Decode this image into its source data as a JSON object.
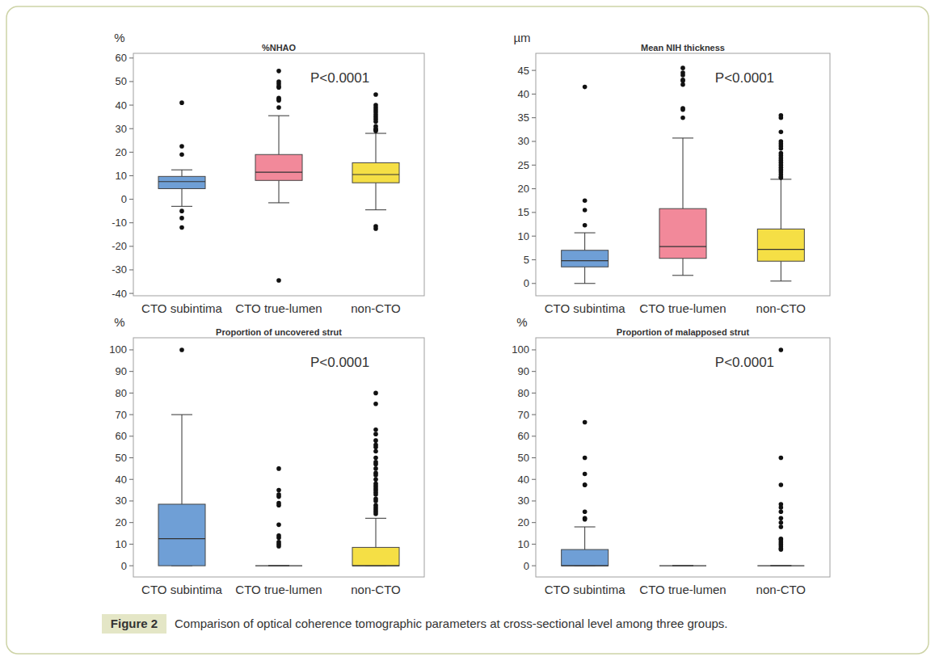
{
  "chart_data": [
    {
      "type": "box",
      "title": "%NHAO",
      "y_label": "%",
      "annotation": "P<0.0001",
      "categories": [
        "CTO subintima",
        "CTO true-lumen",
        "non-CTO"
      ],
      "colors": [
        "#6f9fd6",
        "#f2899a",
        "#f5df45"
      ],
      "ylim": [
        -41,
        62
      ],
      "yticks": [
        -40,
        -30,
        -20,
        -10,
        0,
        10,
        20,
        30,
        40,
        50,
        60
      ],
      "boxes": [
        {
          "whisker_low": -3,
          "q1": 4.5,
          "median": 7.5,
          "q3": 9.7,
          "whisker_high": 12.5,
          "outliers": [
            41,
            22.5,
            19,
            -5,
            -8,
            -12
          ]
        },
        {
          "whisker_low": -1.5,
          "q1": 8,
          "median": 11.5,
          "q3": 19,
          "whisker_high": 35.5,
          "outliers": [
            54.5,
            50,
            49,
            48,
            47.5,
            43,
            42.5,
            42,
            39,
            -34.5
          ]
        },
        {
          "whisker_low": -4.5,
          "q1": 7,
          "median": 10.5,
          "q3": 15.5,
          "whisker_high": 28,
          "outliers": [
            44.5,
            40,
            39,
            38,
            37,
            36,
            35,
            34,
            33,
            31,
            30,
            29.5,
            29,
            -11.5,
            -12.5
          ]
        }
      ]
    },
    {
      "type": "box",
      "title": "Mean NIH thickness",
      "y_label": "µm",
      "annotation": "P<0.0001",
      "categories": [
        "CTO subintima",
        "CTO true-lumen",
        "non-CTO"
      ],
      "colors": [
        "#6f9fd6",
        "#f2899a",
        "#f5df45"
      ],
      "ylim": [
        -2.6,
        48.6
      ],
      "yticks": [
        0,
        5,
        10,
        15,
        20,
        25,
        30,
        35,
        40,
        45
      ],
      "boxes": [
        {
          "whisker_low": 0,
          "q1": 3.5,
          "median": 4.8,
          "q3": 7,
          "whisker_high": 10.7,
          "outliers": [
            41.5,
            17.5,
            15.5,
            12.3
          ]
        },
        {
          "whisker_low": 1.7,
          "q1": 5.3,
          "median": 7.8,
          "q3": 15.8,
          "whisker_high": 30.7,
          "outliers": [
            45.5,
            44.5,
            44,
            43,
            42.8,
            42,
            37,
            36.7,
            35
          ]
        },
        {
          "whisker_low": 0.5,
          "q1": 4.7,
          "median": 7.2,
          "q3": 11.5,
          "whisker_high": 22,
          "outliers": [
            35.5,
            35,
            32,
            30,
            29.5,
            29,
            28.5,
            27.5,
            27,
            26.5,
            26,
            25.5,
            25,
            24.5,
            24,
            23.5,
            23,
            22.5,
            22.3
          ]
        }
      ]
    },
    {
      "type": "box",
      "title": "Proportion of uncovered strut",
      "y_label": "%",
      "annotation": "P<0.0001",
      "categories": [
        "CTO subintima",
        "CTO true-lumen",
        "non-CTO"
      ],
      "colors": [
        "#6f9fd6",
        "#f2899a",
        "#f5df45"
      ],
      "ylim": [
        -5.2,
        105.6
      ],
      "yticks": [
        0,
        10,
        20,
        30,
        40,
        50,
        60,
        70,
        80,
        90,
        100
      ],
      "boxes": [
        {
          "whisker_low": 0,
          "q1": 0,
          "median": 12.5,
          "q3": 28.5,
          "whisker_high": 70,
          "outliers": [
            100
          ]
        },
        {
          "whisker_low": 0,
          "q1": 0,
          "median": 0,
          "q3": 0,
          "whisker_high": 0,
          "outliers": [
            45,
            35,
            33,
            32,
            29,
            28,
            19,
            14,
            13,
            11,
            10,
            9
          ]
        },
        {
          "whisker_low": 0,
          "q1": 0,
          "median": 0,
          "q3": 8.5,
          "whisker_high": 22,
          "outliers": [
            80,
            75,
            63,
            61,
            58,
            56,
            55,
            53,
            50,
            48,
            47,
            45,
            43,
            42,
            40,
            38,
            37,
            36,
            35,
            34,
            33,
            31,
            30,
            28,
            27,
            26,
            25,
            24
          ]
        }
      ]
    },
    {
      "type": "box",
      "title": "Proportion of malapposed strut",
      "y_label": "%",
      "annotation": "P<0.0001",
      "categories": [
        "CTO subintima",
        "CTO true-lumen",
        "non-CTO"
      ],
      "colors": [
        "#6f9fd6",
        "#f2899a",
        "#f5df45"
      ],
      "ylim": [
        -5.2,
        105.6
      ],
      "yticks": [
        0,
        10,
        20,
        30,
        40,
        50,
        60,
        70,
        80,
        90,
        100
      ],
      "boxes": [
        {
          "whisker_low": 0,
          "q1": 0,
          "median": 0,
          "q3": 7.5,
          "whisker_high": 18,
          "outliers": [
            66.5,
            50,
            42.5,
            37.5,
            37.5,
            25,
            22,
            21.5
          ]
        },
        {
          "whisker_low": 0,
          "q1": 0,
          "median": 0,
          "q3": 0,
          "whisker_high": 0,
          "outliers": []
        },
        {
          "whisker_low": 0,
          "q1": 0,
          "median": 0,
          "q3": 0,
          "whisker_high": 0,
          "outliers": [
            100,
            50,
            37.5,
            28.5,
            27,
            25,
            22,
            20,
            18,
            12.5,
            12,
            11,
            10,
            9,
            8,
            7.5
          ]
        }
      ]
    }
  ],
  "figure": {
    "label": "Figure 2",
    "caption": "Comparison of optical coherence tomographic parameters at cross-sectional level among three groups."
  }
}
